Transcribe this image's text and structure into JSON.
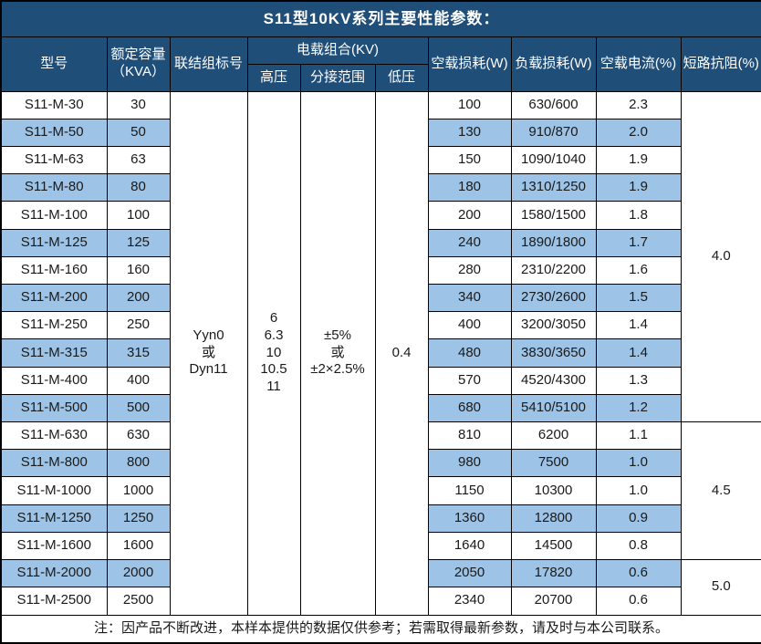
{
  "title": "S11型10KV系列主要性能参数：",
  "headers": {
    "model": "型号",
    "capacity": "额定容量\n（KVA）",
    "vector_group": "联结组标号",
    "voltage_combo": "电载组合(KV)",
    "hv": "高压",
    "tap_range": "分接范围",
    "lv": "低压",
    "no_load_loss": "空载损耗(W)",
    "load_loss": "负载损耗(W)",
    "no_load_current": "空载电流(%)",
    "impedance": "短路抗阻(%)"
  },
  "merged_cells": {
    "vector_group": "Yyn0\n或\nDyn11",
    "hv_voltages": "6\n6.3\n10\n10.5\n11",
    "tap_range": "±5%\n或\n±2×2.5%",
    "lv_voltage": "0.4"
  },
  "rows": [
    {
      "model": "S11-M-30",
      "capacity": "30",
      "no_load_loss": "100",
      "load_loss": "630/600",
      "no_load_current": "2.3"
    },
    {
      "model": "S11-M-50",
      "capacity": "50",
      "no_load_loss": "130",
      "load_loss": "910/870",
      "no_load_current": "2.0"
    },
    {
      "model": "S11-M-63",
      "capacity": "63",
      "no_load_loss": "150",
      "load_loss": "1090/1040",
      "no_load_current": "1.9"
    },
    {
      "model": "S11-M-80",
      "capacity": "80",
      "no_load_loss": "180",
      "load_loss": "1310/1250",
      "no_load_current": "1.9"
    },
    {
      "model": "S11-M-100",
      "capacity": "100",
      "no_load_loss": "200",
      "load_loss": "1580/1500",
      "no_load_current": "1.8"
    },
    {
      "model": "S11-M-125",
      "capacity": "125",
      "no_load_loss": "240",
      "load_loss": "1890/1800",
      "no_load_current": "1.7"
    },
    {
      "model": "S11-M-160",
      "capacity": "160",
      "no_load_loss": "280",
      "load_loss": "2310/2200",
      "no_load_current": "1.6"
    },
    {
      "model": "S11-M-200",
      "capacity": "200",
      "no_load_loss": "340",
      "load_loss": "2730/2600",
      "no_load_current": "1.5"
    },
    {
      "model": "S11-M-250",
      "capacity": "250",
      "no_load_loss": "400",
      "load_loss": "3200/3050",
      "no_load_current": "1.4"
    },
    {
      "model": "S11-M-315",
      "capacity": "315",
      "no_load_loss": "480",
      "load_loss": "3830/3650",
      "no_load_current": "1.4"
    },
    {
      "model": "S11-M-400",
      "capacity": "400",
      "no_load_loss": "570",
      "load_loss": "4520/4300",
      "no_load_current": "1.3"
    },
    {
      "model": "S11-M-500",
      "capacity": "500",
      "no_load_loss": "680",
      "load_loss": "5410/5100",
      "no_load_current": "1.2"
    },
    {
      "model": "S11-M-630",
      "capacity": "630",
      "no_load_loss": "810",
      "load_loss": "6200",
      "no_load_current": "1.1"
    },
    {
      "model": "S11-M-800",
      "capacity": "800",
      "no_load_loss": "980",
      "load_loss": "7500",
      "no_load_current": "1.0"
    },
    {
      "model": "S11-M-1000",
      "capacity": "1000",
      "no_load_loss": "1150",
      "load_loss": "10300",
      "no_load_current": "1.0"
    },
    {
      "model": "S11-M-1250",
      "capacity": "1250",
      "no_load_loss": "1360",
      "load_loss": "12800",
      "no_load_current": "0.9"
    },
    {
      "model": "S11-M-1600",
      "capacity": "1600",
      "no_load_loss": "1640",
      "load_loss": "14500",
      "no_load_current": "0.8"
    },
    {
      "model": "S11-M-2000",
      "capacity": "2000",
      "no_load_loss": "2050",
      "load_loss": "17820",
      "no_load_current": "0.6"
    },
    {
      "model": "S11-M-2500",
      "capacity": "2500",
      "no_load_loss": "2340",
      "load_loss": "20700",
      "no_load_current": "0.6"
    }
  ],
  "impedance_groups": [
    {
      "value": "4.0",
      "rowspan": 12
    },
    {
      "value": "4.5",
      "rowspan": 5
    },
    {
      "value": "5.0",
      "rowspan": 2
    }
  ],
  "footer_note": "注：因产品不断改进，本样本提供的数据仅供参考；若需取得最新参数，请及时与本公司联系。",
  "colors": {
    "title_bg": "#1F4E79",
    "header_bg": "#1F4E79",
    "stripe_bg": "#9DC3E6",
    "border_color": "#000000",
    "header_text": "#FFFFFF",
    "body_text": "#1A1A1A"
  }
}
